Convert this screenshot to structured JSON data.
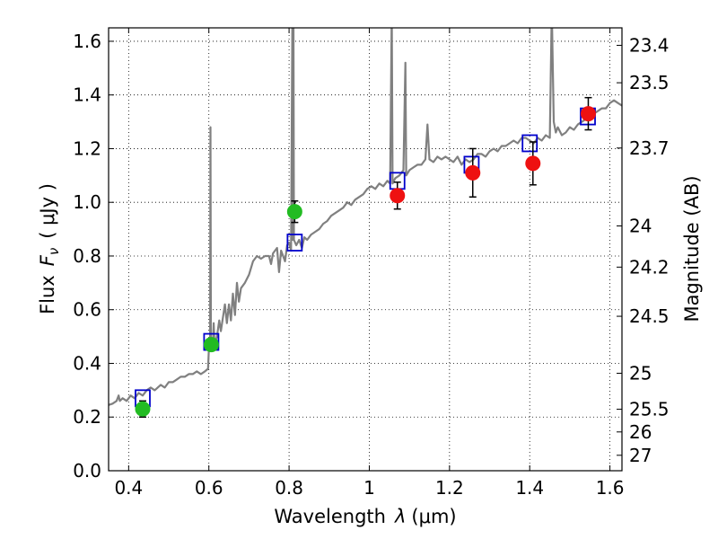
{
  "chart_data": {
    "type": "scatter",
    "xlabel_prefix": "Wavelength",
    "xlabel_symbol": "λ",
    "xlabel_unit": "(μm)",
    "ylabel_prefix": "Flux",
    "ylabel_symbol": "F",
    "ylabel_subscript": "ν",
    "ylabel_unit": "( μJy )",
    "ylabel_right": "Magnitude (AB)",
    "xlim": [
      0.35,
      1.63
    ],
    "ylim": [
      0.0,
      1.65
    ],
    "grid": true,
    "x_ticks": [
      {
        "value": 0.4,
        "label": "0.4"
      },
      {
        "value": 0.6,
        "label": "0.6"
      },
      {
        "value": 0.8,
        "label": "0.8"
      },
      {
        "value": 1.0,
        "label": "1"
      },
      {
        "value": 1.2,
        "label": "1.2"
      },
      {
        "value": 1.4,
        "label": "1.4"
      },
      {
        "value": 1.6,
        "label": "1.6"
      }
    ],
    "y_ticks": [
      {
        "value": 0.0,
        "label": "0.0"
      },
      {
        "value": 0.2,
        "label": "0.2"
      },
      {
        "value": 0.4,
        "label": "0.4"
      },
      {
        "value": 0.6,
        "label": "0.6"
      },
      {
        "value": 0.8,
        "label": "0.8"
      },
      {
        "value": 1.0,
        "label": "1.0"
      },
      {
        "value": 1.2,
        "label": "1.2"
      },
      {
        "value": 1.4,
        "label": "1.4"
      },
      {
        "value": 1.6,
        "label": "1.6"
      }
    ],
    "right_ticks": [
      {
        "mag": 23.4,
        "label": "23.4"
      },
      {
        "mag": 23.5,
        "label": "23.5"
      },
      {
        "mag": 23.7,
        "label": "23.7"
      },
      {
        "mag": 24.0,
        "label": "24"
      },
      {
        "mag": 24.2,
        "label": "24.2"
      },
      {
        "mag": 24.5,
        "label": "24.5"
      },
      {
        "mag": 25.0,
        "label": "25"
      },
      {
        "mag": 25.5,
        "label": "25.5"
      },
      {
        "mag": 26.0,
        "label": "26"
      },
      {
        "mag": 27.0,
        "label": "27"
      }
    ],
    "model_points": [
      {
        "x": 0.435,
        "y": 0.27
      },
      {
        "x": 0.606,
        "y": 0.48
      },
      {
        "x": 0.814,
        "y": 0.85
      },
      {
        "x": 1.07,
        "y": 1.08
      },
      {
        "x": 1.255,
        "y": 1.14
      },
      {
        "x": 1.4,
        "y": 1.22
      },
      {
        "x": 1.545,
        "y": 1.32
      }
    ],
    "green_points": [
      {
        "x": 0.435,
        "y": 0.23,
        "err": 0.03
      },
      {
        "x": 0.606,
        "y": 0.47,
        "err": 0.02
      },
      {
        "x": 0.814,
        "y": 0.965,
        "err": 0.04
      }
    ],
    "red_points": [
      {
        "x": 1.07,
        "y": 1.025,
        "err": 0.05
      },
      {
        "x": 1.258,
        "y": 1.11,
        "err": 0.09
      },
      {
        "x": 1.408,
        "y": 1.145,
        "err": 0.08
      },
      {
        "x": 1.546,
        "y": 1.33,
        "err": 0.06
      }
    ],
    "spectrum": [
      [
        0.35,
        0.245
      ],
      [
        0.36,
        0.25
      ],
      [
        0.37,
        0.26
      ],
      [
        0.375,
        0.28
      ],
      [
        0.378,
        0.26
      ],
      [
        0.385,
        0.27
      ],
      [
        0.395,
        0.26
      ],
      [
        0.405,
        0.28
      ],
      [
        0.415,
        0.27
      ],
      [
        0.425,
        0.29
      ],
      [
        0.435,
        0.28
      ],
      [
        0.445,
        0.3
      ],
      [
        0.455,
        0.31
      ],
      [
        0.465,
        0.3
      ],
      [
        0.48,
        0.32
      ],
      [
        0.49,
        0.31
      ],
      [
        0.5,
        0.33
      ],
      [
        0.51,
        0.33
      ],
      [
        0.52,
        0.34
      ],
      [
        0.53,
        0.35
      ],
      [
        0.54,
        0.35
      ],
      [
        0.55,
        0.36
      ],
      [
        0.56,
        0.36
      ],
      [
        0.57,
        0.37
      ],
      [
        0.58,
        0.36
      ],
      [
        0.59,
        0.37
      ],
      [
        0.598,
        0.38
      ],
      [
        0.6,
        0.45
      ],
      [
        0.603,
        0.47
      ],
      [
        0.604,
        1.28
      ],
      [
        0.605,
        0.48
      ],
      [
        0.61,
        0.46
      ],
      [
        0.612,
        0.55
      ],
      [
        0.614,
        0.47
      ],
      [
        0.62,
        0.5
      ],
      [
        0.626,
        0.56
      ],
      [
        0.63,
        0.52
      ],
      [
        0.64,
        0.62
      ],
      [
        0.645,
        0.55
      ],
      [
        0.65,
        0.62
      ],
      [
        0.655,
        0.56
      ],
      [
        0.66,
        0.66
      ],
      [
        0.665,
        0.58
      ],
      [
        0.67,
        0.7
      ],
      [
        0.675,
        0.63
      ],
      [
        0.68,
        0.68
      ],
      [
        0.69,
        0.7
      ],
      [
        0.7,
        0.73
      ],
      [
        0.71,
        0.78
      ],
      [
        0.72,
        0.8
      ],
      [
        0.73,
        0.79
      ],
      [
        0.74,
        0.8
      ],
      [
        0.75,
        0.8
      ],
      [
        0.755,
        0.77
      ],
      [
        0.76,
        0.81
      ],
      [
        0.77,
        0.83
      ],
      [
        0.775,
        0.74
      ],
      [
        0.78,
        0.82
      ],
      [
        0.79,
        0.78
      ],
      [
        0.795,
        0.84
      ],
      [
        0.8,
        0.85
      ],
      [
        0.805,
        0.82
      ],
      [
        0.808,
        1.65
      ],
      [
        0.809,
        0.86
      ],
      [
        0.811,
        1.65
      ],
      [
        0.812,
        0.86
      ],
      [
        0.818,
        0.84
      ],
      [
        0.825,
        0.86
      ],
      [
        0.832,
        0.83
      ],
      [
        0.838,
        0.87
      ],
      [
        0.845,
        0.86
      ],
      [
        0.855,
        0.88
      ],
      [
        0.865,
        0.89
      ],
      [
        0.875,
        0.9
      ],
      [
        0.885,
        0.92
      ],
      [
        0.895,
        0.93
      ],
      [
        0.905,
        0.95
      ],
      [
        0.915,
        0.96
      ],
      [
        0.925,
        0.97
      ],
      [
        0.935,
        0.98
      ],
      [
        0.945,
        1.0
      ],
      [
        0.955,
        0.99
      ],
      [
        0.965,
        1.01
      ],
      [
        0.975,
        1.02
      ],
      [
        0.985,
        1.03
      ],
      [
        0.995,
        1.05
      ],
      [
        1.005,
        1.06
      ],
      [
        1.015,
        1.05
      ],
      [
        1.025,
        1.07
      ],
      [
        1.035,
        1.06
      ],
      [
        1.045,
        1.08
      ],
      [
        1.052,
        1.07
      ],
      [
        1.056,
        1.72
      ],
      [
        1.058,
        1.07
      ],
      [
        1.065,
        1.09
      ],
      [
        1.075,
        1.1
      ],
      [
        1.085,
        1.12
      ],
      [
        1.09,
        1.52
      ],
      [
        1.092,
        1.1
      ],
      [
        1.1,
        1.12
      ],
      [
        1.11,
        1.13
      ],
      [
        1.12,
        1.14
      ],
      [
        1.13,
        1.14
      ],
      [
        1.14,
        1.16
      ],
      [
        1.145,
        1.29
      ],
      [
        1.15,
        1.16
      ],
      [
        1.16,
        1.15
      ],
      [
        1.17,
        1.17
      ],
      [
        1.18,
        1.16
      ],
      [
        1.19,
        1.17
      ],
      [
        1.2,
        1.16
      ],
      [
        1.21,
        1.15
      ],
      [
        1.22,
        1.17
      ],
      [
        1.23,
        1.14
      ],
      [
        1.24,
        1.16
      ],
      [
        1.25,
        1.15
      ],
      [
        1.26,
        1.16
      ],
      [
        1.27,
        1.18
      ],
      [
        1.28,
        1.18
      ],
      [
        1.29,
        1.17
      ],
      [
        1.3,
        1.19
      ],
      [
        1.31,
        1.2
      ],
      [
        1.32,
        1.19
      ],
      [
        1.33,
        1.21
      ],
      [
        1.34,
        1.21
      ],
      [
        1.35,
        1.22
      ],
      [
        1.36,
        1.23
      ],
      [
        1.37,
        1.22
      ],
      [
        1.38,
        1.24
      ],
      [
        1.39,
        1.24
      ],
      [
        1.4,
        1.23
      ],
      [
        1.41,
        1.22
      ],
      [
        1.42,
        1.24
      ],
      [
        1.43,
        1.23
      ],
      [
        1.44,
        1.25
      ],
      [
        1.45,
        1.24
      ],
      [
        1.455,
        1.72
      ],
      [
        1.46,
        1.3
      ],
      [
        1.465,
        1.26
      ],
      [
        1.47,
        1.28
      ],
      [
        1.48,
        1.25
      ],
      [
        1.49,
        1.26
      ],
      [
        1.5,
        1.28
      ],
      [
        1.51,
        1.27
      ],
      [
        1.52,
        1.29
      ],
      [
        1.53,
        1.3
      ],
      [
        1.54,
        1.31
      ],
      [
        1.55,
        1.32
      ],
      [
        1.56,
        1.33
      ],
      [
        1.57,
        1.34
      ],
      [
        1.58,
        1.35
      ],
      [
        1.59,
        1.35
      ],
      [
        1.6,
        1.37
      ],
      [
        1.61,
        1.38
      ],
      [
        1.62,
        1.37
      ],
      [
        1.63,
        1.36
      ]
    ]
  }
}
